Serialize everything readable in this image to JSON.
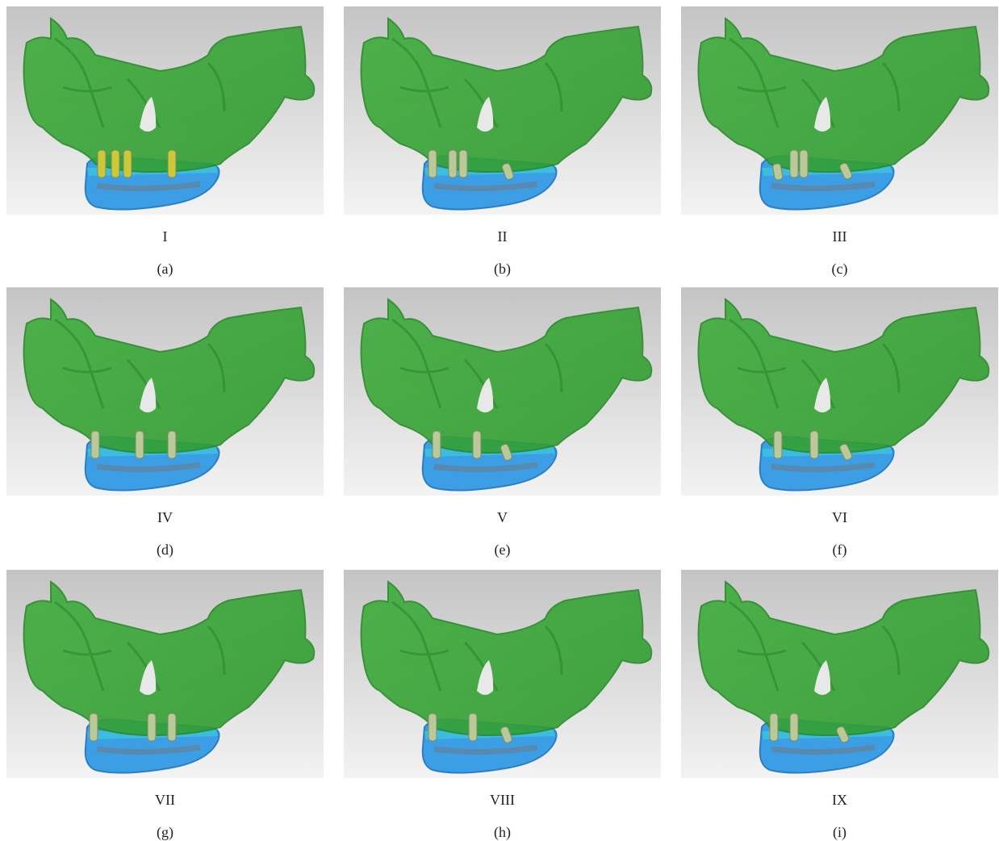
{
  "panels": [
    {
      "label": "I",
      "caption": "(a)"
    },
    {
      "label": "II",
      "caption": "(b)"
    },
    {
      "label": "III",
      "caption": "(c)"
    },
    {
      "label": "IV",
      "caption": "(d)"
    },
    {
      "label": "V",
      "caption": "(e)"
    },
    {
      "label": "VI",
      "caption": "(f)"
    },
    {
      "label": "VII",
      "caption": "(g)"
    },
    {
      "label": "VIII",
      "caption": "(h)"
    },
    {
      "label": "IX",
      "caption": "(i)"
    }
  ]
}
